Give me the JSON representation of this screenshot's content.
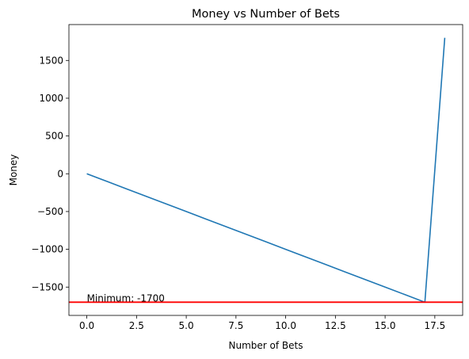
{
  "chart_data": {
    "type": "line",
    "title": "Money vs Number of Bets",
    "xlabel": "Number of Bets",
    "ylabel": "Money",
    "x": [
      0,
      1,
      2,
      3,
      4,
      5,
      6,
      7,
      8,
      9,
      10,
      11,
      12,
      13,
      14,
      15,
      16,
      17,
      18
    ],
    "series": [
      {
        "values": [
          0,
          -100,
          -200,
          -300,
          -400,
          -500,
          -600,
          -700,
          -800,
          -900,
          -1000,
          -1100,
          -1200,
          -1300,
          -1400,
          -1500,
          -1600,
          -1700,
          1800
        ],
        "color": "#1f77b4"
      }
    ],
    "xlim": [
      -0.9,
      18.9
    ],
    "ylim": [
      -1875,
      1975
    ],
    "xticks": [
      0.0,
      2.5,
      5.0,
      7.5,
      10.0,
      12.5,
      15.0,
      17.5
    ],
    "xtick_labels": [
      "0.0",
      "2.5",
      "5.0",
      "7.5",
      "10.0",
      "12.5",
      "15.0",
      "17.5"
    ],
    "yticks": [
      -1500,
      -1000,
      -500,
      0,
      500,
      1000,
      1500
    ],
    "ytick_labels": [
      "−1500",
      "−1000",
      "−500",
      "0",
      "500",
      "1000",
      "1500"
    ],
    "reference_line": {
      "y": -1700,
      "color": "#ff0000"
    },
    "annotation": {
      "text": "Minimum: -1700",
      "x": 0,
      "y": -1700
    },
    "grid": false,
    "legend": "none"
  }
}
